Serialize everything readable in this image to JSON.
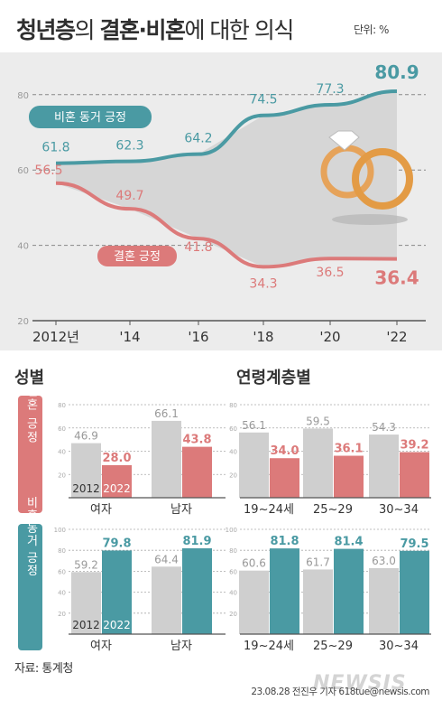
{
  "title": {
    "part1": "청년층",
    "part2": "의 ",
    "part3": "결혼·비혼",
    "part4": "에 대한 의식"
  },
  "unit": "단위: %",
  "colors": {
    "teal": "#4a9aa3",
    "red": "#dc7a7a",
    "gray": "#cfcfcf",
    "panel": "#ececec",
    "grid": "#888888"
  },
  "chart_data": [
    {
      "type": "line",
      "categories": [
        "2012년",
        "'14",
        "'16",
        "'18",
        "'20",
        "'22"
      ],
      "yticks": [
        20,
        40,
        60,
        80
      ],
      "ylim": [
        20,
        85
      ],
      "series": [
        {
          "name": "비혼 동거 긍정",
          "values": [
            61.8,
            62.3,
            64.2,
            74.5,
            77.3,
            80.9
          ],
          "labels": [
            "61.8",
            "62.3",
            "64.2",
            "74.5",
            "77.3",
            "80.9"
          ],
          "color": "#4a9aa3"
        },
        {
          "name": "결혼 긍정",
          "values": [
            56.5,
            49.7,
            41.8,
            34.3,
            36.5,
            36.4
          ],
          "labels": [
            "56.5",
            "49.7",
            "41.8",
            "34.3",
            "36.5",
            "36.4"
          ],
          "color": "#dc7a7a"
        }
      ]
    },
    {
      "type": "bar",
      "section": "성별",
      "group_label": "결혼 긍정",
      "categories": [
        "여자",
        "남자"
      ],
      "series": [
        {
          "name": "2012",
          "values": [
            46.9,
            66.1
          ],
          "labels": [
            "46.9",
            "66.1"
          ]
        },
        {
          "name": "2022",
          "values": [
            28.0,
            43.8
          ],
          "labels": [
            "28.0",
            "43.8"
          ]
        }
      ],
      "ylim": [
        0,
        80
      ],
      "yticks": [
        0,
        20,
        40,
        60,
        80
      ]
    },
    {
      "type": "bar",
      "section": "연령계층별",
      "group_label": "결혼 긍정",
      "categories": [
        "19~24세",
        "25~29",
        "30~34"
      ],
      "series": [
        {
          "name": "2012",
          "values": [
            56.1,
            59.5,
            54.3
          ],
          "labels": [
            "56.1",
            "59.5",
            "54.3"
          ]
        },
        {
          "name": "2022",
          "values": [
            34.0,
            36.1,
            39.2
          ],
          "labels": [
            "34.0",
            "36.1",
            "39.2"
          ]
        }
      ],
      "ylim": [
        0,
        80
      ],
      "yticks": [
        0,
        20,
        40,
        60,
        80
      ]
    },
    {
      "type": "bar",
      "section": "성별",
      "group_label": "비혼동거 긍정",
      "categories": [
        "여자",
        "남자"
      ],
      "series": [
        {
          "name": "2012",
          "values": [
            59.2,
            64.4
          ],
          "labels": [
            "59.2",
            "64.4"
          ]
        },
        {
          "name": "2022",
          "values": [
            79.8,
            81.9
          ],
          "labels": [
            "79.8",
            "81.9"
          ]
        }
      ],
      "ylim": [
        0,
        100
      ],
      "yticks": [
        0,
        20,
        40,
        60,
        80,
        100
      ]
    },
    {
      "type": "bar",
      "section": "연령계층별",
      "group_label": "비혼동거 긍정",
      "categories": [
        "19~24세",
        "25~29",
        "30~34"
      ],
      "series": [
        {
          "name": "2012",
          "values": [
            60.6,
            61.7,
            63.0
          ],
          "labels": [
            "60.6",
            "61.7",
            "63.0"
          ]
        },
        {
          "name": "2022",
          "values": [
            81.8,
            81.4,
            79.5
          ],
          "labels": [
            "81.8",
            "81.4",
            "79.5"
          ]
        }
      ],
      "ylim": [
        0,
        100
      ],
      "yticks": [
        0,
        20,
        40,
        60,
        80,
        100
      ]
    }
  ],
  "section_titles": {
    "gender": "성별",
    "age": "연령계층별"
  },
  "side_labels": {
    "marriage": "결혼 긍정",
    "cohab": "비혼동거 긍정"
  },
  "source": "자료: 통계청",
  "credit": "23.08.28 전진우 기자  618tue@newsis.com",
  "logo": "NEWSIS"
}
